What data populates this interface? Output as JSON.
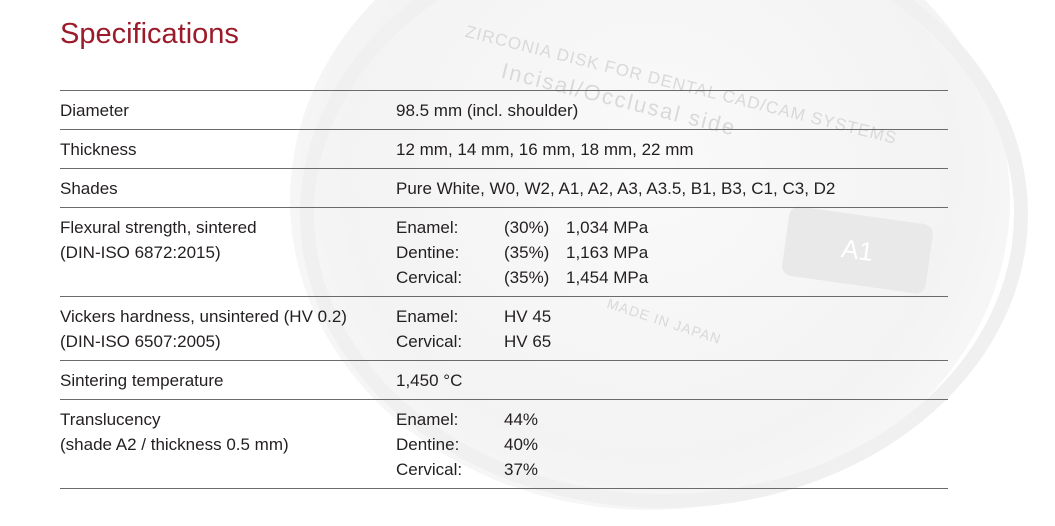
{
  "title": "Specifications",
  "background_text": {
    "line1": "ZIRCONIA DISK FOR DENTAL CAD/CAM SYSTEMS",
    "line2": "Incisal/Occlusal side",
    "line3": "MADE IN JAPAN",
    "badge": "A1"
  },
  "colors": {
    "title": "#9b1b2a",
    "rule": "#6b6b6b",
    "text": "#231f20"
  },
  "rows": [
    {
      "label": [
        "Diameter"
      ],
      "value": "98.5 mm (incl. shoulder)"
    },
    {
      "label": [
        "Thickness"
      ],
      "value": "12 mm, 14 mm, 16 mm, 18 mm, 22 mm"
    },
    {
      "label": [
        "Shades"
      ],
      "value": "Pure White, W0, W2, A1, A2, A3, A3.5, B1, B3, C1, C3, D2"
    },
    {
      "label": [
        "Flexural strength, sintered",
        "(DIN-ISO 6872:2015)"
      ],
      "items": [
        {
          "layer": "Enamel:",
          "pct": "(30%)",
          "value": "1,034 MPa"
        },
        {
          "layer": "Dentine:",
          "pct": "(35%)",
          "value": "1,163 MPa"
        },
        {
          "layer": "Cervical:",
          "pct": "(35%)",
          "value": "1,454 MPa"
        }
      ]
    },
    {
      "label": [
        "Vickers hardness, unsintered (HV 0.2)",
        "(DIN-ISO 6507:2005)"
      ],
      "items": [
        {
          "layer": "Enamel:",
          "value": "HV 45"
        },
        {
          "layer": "Cervical:",
          "value": "HV 65"
        }
      ]
    },
    {
      "label": [
        "Sintering temperature"
      ],
      "value": "1,450 °C"
    },
    {
      "label": [
        "Translucency",
        "(shade A2 / thickness 0.5 mm)"
      ],
      "items": [
        {
          "layer": "Enamel:",
          "value": "44%"
        },
        {
          "layer": "Dentine:",
          "value": "40%"
        },
        {
          "layer": "Cervical:",
          "value": "37%"
        }
      ]
    }
  ]
}
